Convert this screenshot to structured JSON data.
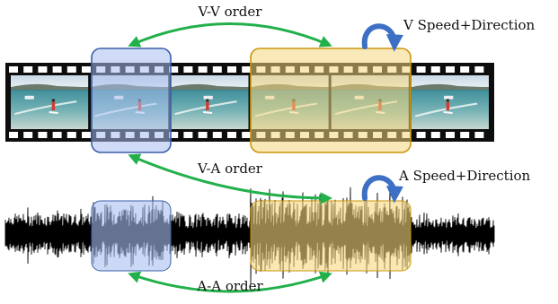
{
  "labels": {
    "vv_order": "V-V order",
    "va_order": "V-A order",
    "aa_order": "A-A order",
    "v_speed_direction": "V Speed+Direction",
    "a_speed_direction": "A Speed+Direction"
  },
  "colors": {
    "arrow_green": "#22b04b",
    "speed_arrow_blue": "#3d6fc4",
    "video_highlight_fill": "#a9bff0",
    "video_highlight_stroke": "#3b5fa8",
    "video_clip_fill": "#f6d77e",
    "video_clip_stroke": "#c9960a",
    "audio_highlight_fill": "#a9bff0",
    "audio_clip_fill": "#f6d77e",
    "film": "#0d0d0d",
    "sprocket": "#ffffff",
    "waveform": "#000000"
  },
  "icons": {
    "speed_direction": "curved-rotation-arrow-icon"
  },
  "film_strip": {
    "frame_count": 6
  }
}
